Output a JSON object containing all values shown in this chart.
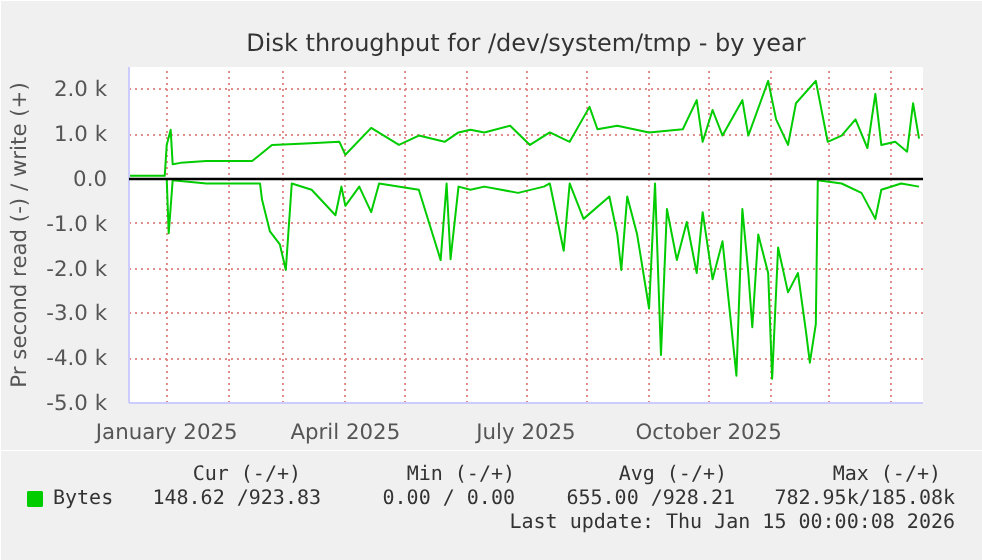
{
  "chart_data": {
    "type": "line",
    "title": "Disk throughput for /dev/system/tmp - by year",
    "ylabel": "Pr second read (-) / write (+)",
    "xlim": [
      "2024-12-13",
      "2026-01-17"
    ],
    "xticks": [
      {
        "value": "2025-01-01",
        "label": "January 2025"
      },
      {
        "value": "2025-02-01",
        "label": null
      },
      {
        "value": "2025-03-01",
        "label": null
      },
      {
        "value": "2025-04-01",
        "label": "April 2025"
      },
      {
        "value": "2025-05-01",
        "label": null
      },
      {
        "value": "2025-06-01",
        "label": null
      },
      {
        "value": "2025-07-01",
        "label": "July 2025"
      },
      {
        "value": "2025-08-01",
        "label": null
      },
      {
        "value": "2025-09-01",
        "label": null
      },
      {
        "value": "2025-10-01",
        "label": "October 2025"
      },
      {
        "value": "2025-11-01",
        "label": null
      },
      {
        "value": "2025-12-01",
        "label": null
      },
      {
        "value": "2026-01-01",
        "label": null
      }
    ],
    "ylim": [
      -5000,
      2500
    ],
    "yticks": [
      {
        "value": -5000,
        "label": "-5.0 k"
      },
      {
        "value": -4000,
        "label": "-4.0 k"
      },
      {
        "value": -3000,
        "label": "-3.0 k"
      },
      {
        "value": -2000,
        "label": "-2.0 k"
      },
      {
        "value": -1000,
        "label": "-1.0 k"
      },
      {
        "value": 0,
        "label": "0.0"
      },
      {
        "value": 1000,
        "label": "1.0 k"
      },
      {
        "value": 2000,
        "label": "2.0 k"
      }
    ],
    "grid": true,
    "legend": "bottom left",
    "ref_lines": [
      {
        "axis": "y",
        "value": 0,
        "label": null,
        "color": "#000000"
      }
    ],
    "annotations": [
      "Cur (-/+)",
      "Min (-/+)",
      "Avg (-/+)",
      "Max (-/+)",
      "148.62 /923.83",
      "0.00 /  0.00",
      "655.00 /928.21",
      "782.95k/185.08k",
      "Last update: Thu Jan 15 00:00:08 2026"
    ],
    "series": [
      {
        "name": "Bytes",
        "color": "#00cc00",
        "x": [
          "2024-12-13",
          "2024-12-31",
          "2025-01-01",
          "2025-01-03",
          "2025-01-04",
          "2025-01-08",
          "2025-01-21",
          "2025-02-05",
          "2025-02-13",
          "2025-02-17",
          "2025-02-23",
          "2025-03-12",
          "2025-03-29",
          "2025-04-01",
          "2025-04-14",
          "2025-04-28",
          "2025-05-08",
          "2025-05-21",
          "2025-05-28",
          "2025-06-03",
          "2025-06-10",
          "2025-06-23",
          "2025-07-03",
          "2025-07-13",
          "2025-07-23",
          "2025-08-02",
          "2025-08-06",
          "2025-08-16",
          "2025-09-01",
          "2025-09-18",
          "2025-09-25",
          "2025-09-28",
          "2025-10-03",
          "2025-10-08",
          "2025-10-18",
          "2025-10-21",
          "2025-10-31",
          "2025-11-04",
          "2025-11-10",
          "2025-11-14",
          "2025-11-24",
          "2025-11-30",
          "2025-12-07",
          "2025-12-14",
          "2025-12-20",
          "2025-12-24",
          "2025-12-27",
          "2026-01-03",
          "2026-01-09",
          "2026-01-12",
          "2026-01-15"
        ],
        "values": [
          70,
          70,
          760,
          1100,
          330,
          360,
          400,
          400,
          400,
          540,
          760,
          790,
          830,
          540,
          1140,
          760,
          970,
          830,
          1040,
          1100,
          1040,
          1190,
          760,
          1040,
          830,
          1610,
          1110,
          1190,
          1040,
          1110,
          1760,
          830,
          1540,
          970,
          1760,
          970,
          2190,
          1330,
          760,
          1690,
          2190,
          830,
          970,
          1330,
          690,
          1900,
          760,
          830,
          610,
          1690,
          900
        ]
      },
      {
        "color": "#00cc00",
        "x": [
          "2024-12-13",
          "2025-01-01",
          "2025-01-02",
          "2025-01-04",
          "2025-01-21",
          "2025-02-17",
          "2025-02-18",
          "2025-02-22",
          "2025-02-27",
          "2025-03-02",
          "2025-03-05",
          "2025-03-15",
          "2025-03-27",
          "2025-03-30",
          "2025-04-01",
          "2025-04-08",
          "2025-04-14",
          "2025-04-18",
          "2025-05-08",
          "2025-05-19",
          "2025-05-22",
          "2025-05-24",
          "2025-05-28",
          "2025-06-03",
          "2025-06-10",
          "2025-06-27",
          "2025-07-10",
          "2025-07-13",
          "2025-07-20",
          "2025-07-23",
          "2025-07-30",
          "2025-08-12",
          "2025-08-16",
          "2025-08-18",
          "2025-08-21",
          "2025-08-26",
          "2025-09-01",
          "2025-09-04",
          "2025-09-07",
          "2025-09-10",
          "2025-09-15",
          "2025-09-20",
          "2025-09-25",
          "2025-09-28",
          "2025-10-03",
          "2025-10-08",
          "2025-10-15",
          "2025-10-18",
          "2025-10-21",
          "2025-10-23",
          "2025-10-26",
          "2025-10-31",
          "2025-11-02",
          "2025-11-05",
          "2025-11-10",
          "2025-11-15",
          "2025-11-19",
          "2025-11-21",
          "2025-11-24",
          "2025-11-25",
          "2025-12-07",
          "2025-12-17",
          "2025-12-24",
          "2025-12-27",
          "2026-01-06",
          "2026-01-15"
        ],
        "values": [
          0,
          0,
          -1210,
          -30,
          -100,
          -100,
          -460,
          -1170,
          -1460,
          -2030,
          -100,
          -240,
          -810,
          -170,
          -600,
          -170,
          -740,
          -100,
          -240,
          -1810,
          -100,
          -1790,
          -170,
          -240,
          -170,
          -310,
          -170,
          -100,
          -1600,
          -100,
          -890,
          -390,
          -1240,
          -2030,
          -390,
          -1240,
          -2890,
          -100,
          -3930,
          -670,
          -1810,
          -960,
          -2100,
          -740,
          -2240,
          -1390,
          -4390,
          -670,
          -2100,
          -3310,
          -1240,
          -2100,
          -4460,
          -1530,
          -2530,
          -2100,
          -3390,
          -4100,
          -3240,
          -30,
          -100,
          -310,
          -890,
          -240,
          -100,
          -170
        ]
      }
    ]
  }
}
